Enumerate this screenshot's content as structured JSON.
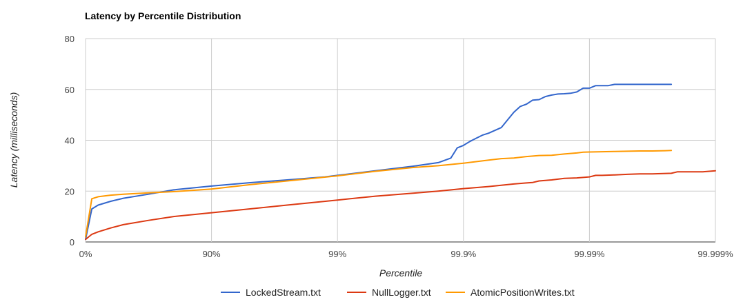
{
  "chart_data": {
    "type": "line",
    "title": "Latency by Percentile Distribution",
    "xlabel": "Percentile",
    "ylabel": "Latency (milliseconds)",
    "x_scale": "log-nines",
    "x_ticks": [
      "0%",
      "90%",
      "99%",
      "99.9%",
      "99.99%",
      "99.999%"
    ],
    "ylim": [
      0,
      80
    ],
    "y_ticks": [
      "0",
      "20",
      "40",
      "60",
      "80"
    ],
    "grid": true,
    "legend_position": "bottom",
    "series": [
      {
        "name": "LockedStream.txt",
        "color": "#3366cc",
        "x": [
          0,
          0.05,
          0.1,
          0.2,
          0.3,
          0.5,
          0.7,
          1.0,
          1.3,
          1.6,
          1.9,
          2.0,
          2.3,
          2.6,
          2.8,
          2.9,
          2.95,
          3.0,
          3.05,
          3.1,
          3.15,
          3.2,
          3.3,
          3.35,
          3.4,
          3.45,
          3.5,
          3.55,
          3.6,
          3.65,
          3.7,
          3.75,
          3.8,
          3.85,
          3.9,
          3.95,
          4.0,
          4.05,
          4.1,
          4.15,
          4.2,
          4.25,
          4.3,
          4.35,
          4.4,
          4.5,
          4.6,
          4.65
        ],
        "y": [
          1,
          13,
          14.5,
          16,
          17.2,
          18.8,
          20.5,
          22,
          23.3,
          24.4,
          25.6,
          26.2,
          28,
          29.8,
          31.2,
          33,
          37,
          38,
          39.5,
          40.8,
          42,
          42.8,
          45,
          48,
          51,
          53.3,
          54.2,
          55.8,
          56,
          57.2,
          57.8,
          58.2,
          58.3,
          58.5,
          59,
          60.5,
          60.5,
          61.5,
          61.5,
          61.5,
          62,
          62,
          62,
          62,
          62,
          62,
          62,
          62
        ]
      },
      {
        "name": "NullLogger.txt",
        "color": "#dc3912",
        "x": [
          0,
          0.05,
          0.1,
          0.2,
          0.3,
          0.5,
          0.7,
          1.0,
          1.3,
          1.6,
          2.0,
          2.3,
          2.6,
          2.8,
          3.0,
          3.2,
          3.4,
          3.5,
          3.55,
          3.6,
          3.7,
          3.8,
          3.9,
          4.0,
          4.05,
          4.1,
          4.2,
          4.3,
          4.4,
          4.5,
          4.65,
          4.7,
          4.8,
          4.9,
          5.0
        ],
        "y": [
          1,
          3,
          4,
          5.5,
          6.8,
          8.5,
          10,
          11.5,
          13,
          14.5,
          16.5,
          18,
          19.2,
          20,
          21,
          21.8,
          22.8,
          23.2,
          23.4,
          24,
          24.4,
          25,
          25.2,
          25.6,
          26.2,
          26.2,
          26.4,
          26.6,
          26.8,
          26.8,
          27,
          27.6,
          27.6,
          27.6,
          28
        ]
      },
      {
        "name": "AtomicPositionWrites.txt",
        "color": "#ff9900",
        "x": [
          0,
          0.05,
          0.1,
          0.2,
          0.3,
          0.5,
          0.7,
          1.0,
          1.3,
          1.6,
          2.0,
          2.3,
          2.6,
          2.8,
          3.0,
          3.2,
          3.3,
          3.4,
          3.5,
          3.6,
          3.7,
          3.8,
          3.9,
          3.95,
          4.0,
          4.1,
          4.2,
          4.3,
          4.4,
          4.5,
          4.6,
          4.65
        ],
        "y": [
          2,
          17,
          17.8,
          18.4,
          18.8,
          19.3,
          19.8,
          20.8,
          22.5,
          24,
          26,
          27.8,
          29.3,
          30,
          31,
          32.2,
          32.8,
          33,
          33.6,
          34,
          34.1,
          34.6,
          35,
          35.3,
          35.4,
          35.5,
          35.6,
          35.7,
          35.8,
          35.8,
          35.9,
          36
        ]
      }
    ]
  }
}
